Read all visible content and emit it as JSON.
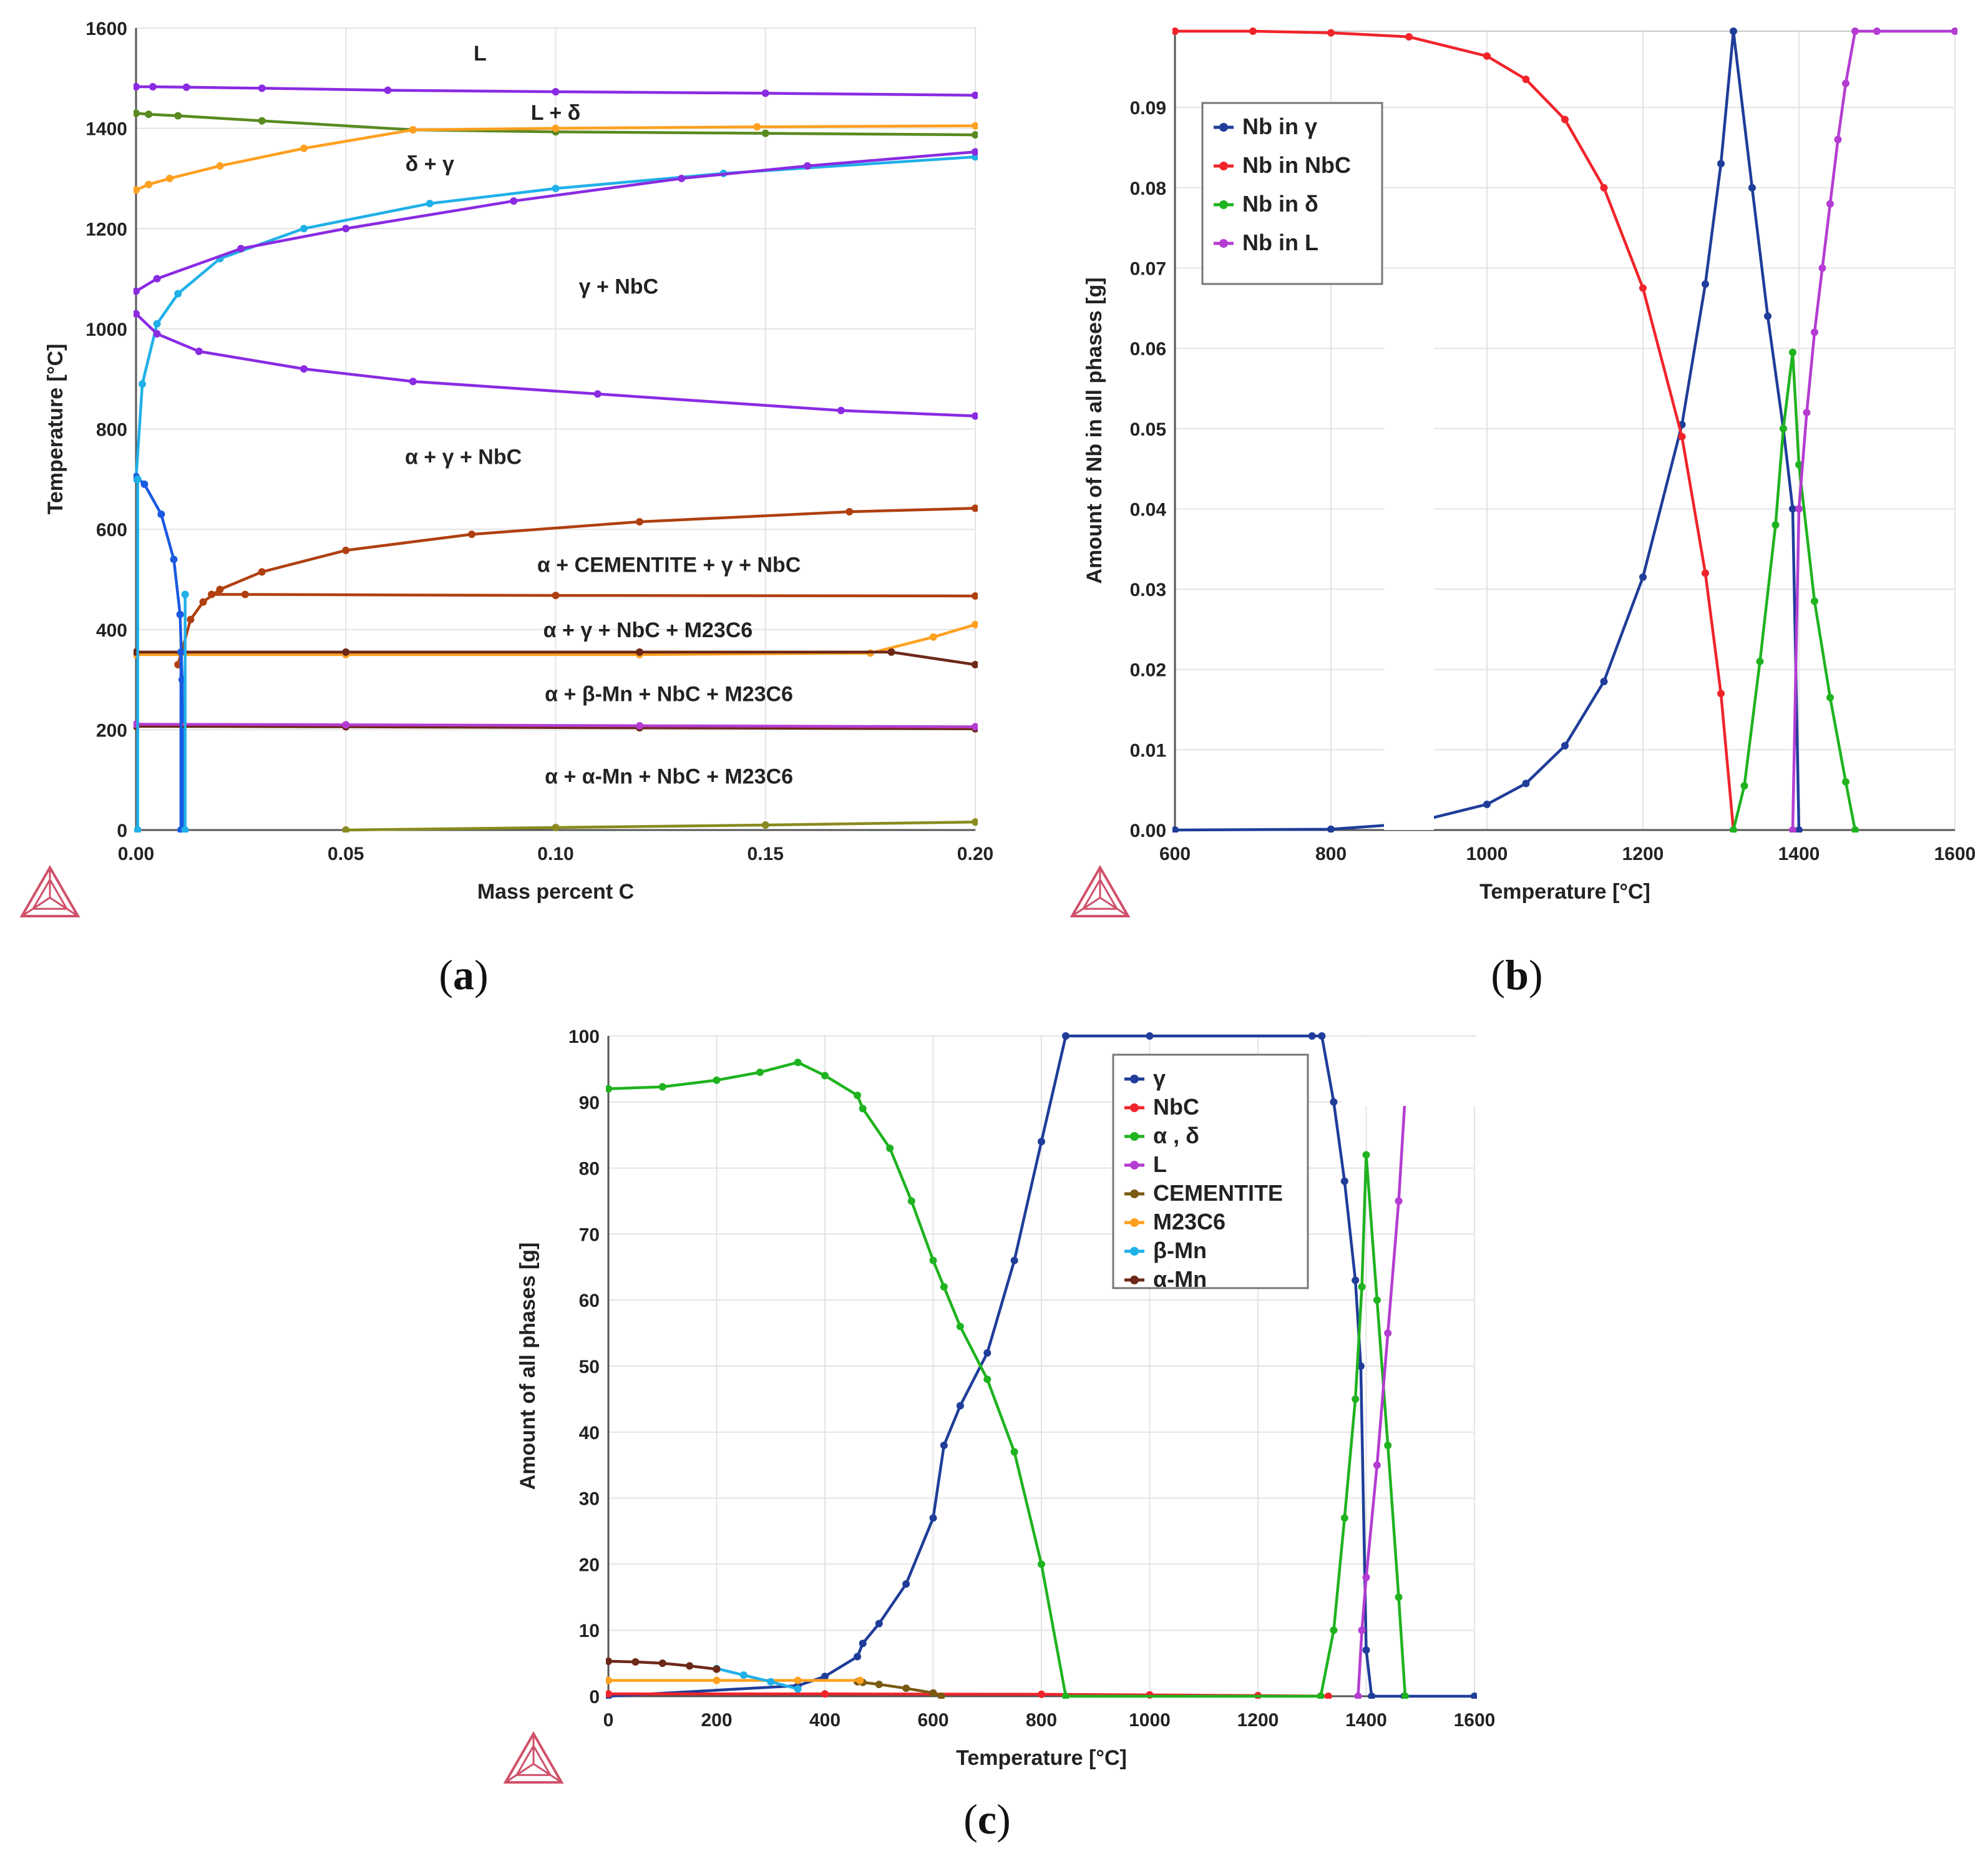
{
  "colors": {
    "gamma": "#1f3d99",
    "nbc": "#f0242a",
    "delta": "#1fb31f",
    "liquid": "#b43cd2",
    "cementite": "#7a5a10",
    "m23c6": "#ffa020",
    "beta_mn": "#20b0e8",
    "alpha_mn": "#6e2818",
    "violet": "#8a2be2",
    "olive": "#5a8a20",
    "brown": "#b04010",
    "blue": "#1a5ae0",
    "olive_dark": "#8a8a20",
    "logo": "#d0506a"
  },
  "captions": {
    "a": {
      "open": "(",
      "letter": "a",
      "close": ")"
    },
    "b": {
      "open": "(",
      "letter": "b",
      "close": ")"
    },
    "c": {
      "open": "(",
      "letter": "c",
      "close": ")"
    }
  },
  "chart_data": [
    {
      "id": "a",
      "type": "line",
      "title": "",
      "xlabel": "Mass percent C",
      "ylabel": "Temperature [°C]",
      "xlim": [
        0,
        0.2
      ],
      "ylim": [
        0,
        1600
      ],
      "xticks": [
        0,
        0.05,
        0.1,
        0.15,
        0.2
      ],
      "xtick_labels": [
        "0.00",
        "0.05",
        "0.10",
        "0.15",
        "0.20"
      ],
      "yticks": [
        0,
        200,
        400,
        600,
        800,
        1000,
        1200,
        1400,
        1600
      ],
      "ytick_labels": [
        "0",
        "200",
        "400",
        "600",
        "800",
        "1000",
        "1200",
        "1400",
        "1600"
      ],
      "grid": true,
      "region_labels": [
        {
          "text": "L",
          "x": 0.082,
          "y": 1550
        },
        {
          "text": "L + δ",
          "x": 0.1,
          "y": 1432
        },
        {
          "text": "δ + γ",
          "x": 0.07,
          "y": 1330
        },
        {
          "text": "γ + NbC",
          "x": 0.115,
          "y": 1085
        },
        {
          "text": "α + γ + NbC",
          "x": 0.078,
          "y": 745
        },
        {
          "text": "α + CEMENTITE + γ + NbC",
          "x": 0.127,
          "y": 530
        },
        {
          "text": "α +  γ + NbC + M23C6",
          "x": 0.122,
          "y": 400
        },
        {
          "text": "α + β-Mn + NbC + M23C6",
          "x": 0.127,
          "y": 272
        },
        {
          "text": "α + α-Mn + NbC + M23C6",
          "x": 0.127,
          "y": 108
        }
      ],
      "series": [
        {
          "name": "L / L+δ boundary",
          "color_key": "violet",
          "x": [
            0,
            0.004,
            0.012,
            0.03,
            0.06,
            0.1,
            0.15,
            0.2
          ],
          "y": [
            1483,
            1483,
            1482,
            1480,
            1476,
            1473,
            1470,
            1466
          ]
        },
        {
          "name": "L+δ / δ+γ (δ side)",
          "color_key": "olive",
          "x": [
            0,
            0.003,
            0.01,
            0.03,
            0.066,
            0.1,
            0.15,
            0.2
          ],
          "y": [
            1430,
            1428,
            1425,
            1415,
            1397,
            1393,
            1390,
            1387
          ]
        },
        {
          "name": "δ+γ / γ lower (orange)",
          "color_key": "m23c6",
          "x": [
            0,
            0.003,
            0.008,
            0.02,
            0.04,
            0.066,
            0.1,
            0.148,
            0.2
          ],
          "y": [
            1277,
            1288,
            1300,
            1325,
            1360,
            1397,
            1400,
            1403,
            1405
          ]
        },
        {
          "name": "γ + NbC solvus (light blue)",
          "color_key": "beta_mn",
          "x": [
            0,
            0.0015,
            0.005,
            0.01,
            0.02,
            0.04,
            0.07,
            0.1,
            0.14,
            0.2
          ],
          "y": [
            700,
            890,
            1010,
            1070,
            1140,
            1200,
            1250,
            1280,
            1310,
            1343
          ]
        },
        {
          "name": "γ upper (violet)",
          "color_key": "violet",
          "x": [
            0,
            0.005,
            0.025,
            0.05,
            0.09,
            0.13,
            0.16,
            0.2
          ],
          "y": [
            1075,
            1100,
            1160,
            1200,
            1255,
            1300,
            1325,
            1353
          ]
        },
        {
          "name": "α+γ / γ boundary",
          "color_key": "violet",
          "x": [
            0,
            0.005,
            0.015,
            0.04,
            0.066,
            0.11,
            0.168,
            0.2
          ],
          "y": [
            1030,
            990,
            955,
            920,
            895,
            870,
            837,
            826
          ]
        },
        {
          "name": "cementite boundary",
          "color_key": "brown",
          "x": [
            0.01,
            0.013,
            0.016,
            0.02,
            0.03,
            0.05,
            0.08,
            0.12,
            0.17,
            0.2
          ],
          "y": [
            330,
            420,
            455,
            480,
            515,
            558,
            590,
            615,
            635,
            642
          ]
        },
        {
          "name": "α solvus (blue)",
          "color_key": "blue",
          "x": [
            0,
            0.002,
            0.006,
            0.009,
            0.0105,
            0.011,
            0.0112
          ],
          "y": [
            705,
            690,
            630,
            540,
            430,
            300,
            0
          ]
        },
        {
          "name": "cementite horizontal",
          "color_key": "brown",
          "x": [
            0.018,
            0.026,
            0.1,
            0.2
          ],
          "y": [
            470,
            470,
            468,
            467
          ]
        },
        {
          "name": "M23C6 line",
          "color_key": "m23c6",
          "x": [
            0,
            0.05,
            0.12,
            0.175,
            0.19,
            0.2
          ],
          "y": [
            350,
            350,
            350,
            353,
            385,
            410
          ]
        },
        {
          "name": "dark 355 line",
          "color_key": "alpha_mn",
          "x": [
            0,
            0.05,
            0.12,
            0.18,
            0.2
          ],
          "y": [
            355,
            355,
            355,
            355,
            330
          ]
        },
        {
          "name": "α-Mn line",
          "color_key": "alpha_mn",
          "x": [
            0,
            0.05,
            0.12,
            0.2
          ],
          "y": [
            207,
            206,
            204,
            202
          ]
        },
        {
          "name": "pink 210 line",
          "color_key": "liquid",
          "x": [
            0,
            0.05,
            0.12,
            0.2
          ],
          "y": [
            211,
            210,
            208,
            206
          ]
        },
        {
          "name": "bottom olive line",
          "color_key": "olive_dark",
          "x": [
            0.05,
            0.1,
            0.15,
            0.2
          ],
          "y": [
            0,
            5,
            10,
            16
          ]
        },
        {
          "name": "cyan vertical 0.000",
          "color_key": "beta_mn",
          "x": [
            0.0004,
            0.0004
          ],
          "y": [
            0,
            700
          ]
        },
        {
          "name": "blue vertical 0.011",
          "color_key": "blue",
          "x": [
            0.0107,
            0.0107
          ],
          "y": [
            0,
            355
          ]
        },
        {
          "name": "cyan vertical 0.012",
          "color_key": "beta_mn",
          "x": [
            0.0117,
            0.0117
          ],
          "y": [
            0,
            470
          ]
        }
      ]
    },
    {
      "id": "b",
      "type": "line",
      "title": "",
      "xlabel": "Temperature [°C]",
      "ylabel": "Amount of Nb in all phases [g]",
      "xlim": [
        600,
        1600
      ],
      "ylim": [
        0,
        0.1
      ],
      "xticks": [
        600,
        800,
        1000,
        1200,
        1400,
        1600
      ],
      "xtick_labels": [
        "600",
        "800",
        "1000",
        "1200",
        "1400",
        "1600"
      ],
      "yticks": [
        0,
        0.01,
        0.02,
        0.03,
        0.04,
        0.05,
        0.06,
        0.07,
        0.08,
        0.09
      ],
      "ytick_labels": [
        "0.00",
        "0.01",
        "0.02",
        "0.03",
        "0.04",
        "0.05",
        "0.06",
        "0.07",
        "0.08",
        "0.09"
      ],
      "grid": true,
      "legend": [
        "Nb in γ",
        "Nb in NbC",
        "Nb in δ",
        "Nb in L"
      ],
      "legend_position": "top-left",
      "series": [
        {
          "name": "Nb in γ",
          "color_key": "gamma",
          "x": [
            600,
            800,
            900,
            1000,
            1050,
            1100,
            1150,
            1200,
            1250,
            1280,
            1300,
            1316,
            1340,
            1360,
            1380,
            1392,
            1400
          ],
          "y": [
            0,
            0.0001,
            0.0008,
            0.0032,
            0.0058,
            0.0105,
            0.0185,
            0.0315,
            0.0505,
            0.068,
            0.083,
            0.0995,
            0.08,
            0.064,
            0.05,
            0.04,
            0
          ]
        },
        {
          "name": "Nb in NbC",
          "color_key": "nbc",
          "x": [
            600,
            700,
            800,
            900,
            1000,
            1050,
            1100,
            1150,
            1200,
            1250,
            1280,
            1300,
            1316
          ],
          "y": [
            0.0995,
            0.0995,
            0.0993,
            0.0988,
            0.0964,
            0.0935,
            0.0885,
            0.08,
            0.0675,
            0.049,
            0.032,
            0.017,
            0
          ]
        },
        {
          "name": "Nb in δ",
          "color_key": "delta",
          "x": [
            1316,
            1330,
            1350,
            1370,
            1380,
            1392,
            1400,
            1420,
            1440,
            1460,
            1472
          ],
          "y": [
            0,
            0.0055,
            0.021,
            0.038,
            0.05,
            0.0595,
            0.0455,
            0.0285,
            0.0165,
            0.006,
            0
          ]
        },
        {
          "name": "Nb in L",
          "color_key": "liquid",
          "x": [
            1392,
            1400,
            1410,
            1420,
            1430,
            1440,
            1450,
            1460,
            1472,
            1500,
            1600
          ],
          "y": [
            0,
            0.04,
            0.052,
            0.062,
            0.07,
            0.078,
            0.086,
            0.093,
            0.0995,
            0.0995,
            0.0995
          ]
        }
      ]
    },
    {
      "id": "c",
      "type": "line",
      "title": "",
      "xlabel": "Temperature [°C]",
      "ylabel": "Amount of all phases [g]",
      "xlim": [
        0,
        1600
      ],
      "ylim": [
        0,
        100
      ],
      "xticks": [
        0,
        200,
        400,
        600,
        800,
        1000,
        1200,
        1400,
        1600
      ],
      "xtick_labels": [
        "0",
        "200",
        "400",
        "600",
        "800",
        "1000",
        "1200",
        "1400",
        "1600"
      ],
      "yticks": [
        0,
        10,
        20,
        30,
        40,
        50,
        60,
        70,
        80,
        90,
        100
      ],
      "ytick_labels": [
        "0",
        "10",
        "20",
        "30",
        "40",
        "50",
        "60",
        "70",
        "80",
        "90",
        "100"
      ],
      "grid": true,
      "legend": [
        "γ",
        "NbC",
        "α , δ",
        "L",
        "CEMENTITE",
        "M23C6",
        "β-Mn",
        "α-Mn"
      ],
      "legend_position": "top-right",
      "series": [
        {
          "name": "γ",
          "color_key": "gamma",
          "x": [
            0,
            350,
            400,
            460,
            470,
            500,
            550,
            600,
            620,
            650,
            700,
            750,
            800,
            845,
            1000,
            1300,
            1318,
            1340,
            1360,
            1380,
            1390,
            1400,
            1410,
            1470,
            1600
          ],
          "y": [
            0,
            1.6,
            3,
            6,
            8,
            11,
            17,
            27,
            38,
            44,
            52,
            66,
            84,
            100,
            100,
            100,
            100,
            90,
            78,
            63,
            50,
            7,
            0,
            0,
            0
          ]
        },
        {
          "name": "NbC",
          "color_key": "nbc",
          "x": [
            0,
            400,
            800,
            1000,
            1200,
            1316,
            1330
          ],
          "y": [
            0.35,
            0.35,
            0.3,
            0.2,
            0.1,
            0.02,
            0
          ]
        },
        {
          "name": "α , δ",
          "color_key": "delta",
          "x": [
            0,
            100,
            200,
            280,
            350,
            400,
            460,
            470,
            520,
            560,
            600,
            620,
            650,
            700,
            750,
            800,
            845,
            1316,
            1340,
            1360,
            1380,
            1392,
            1400,
            1420,
            1440,
            1460,
            1472
          ],
          "y": [
            92,
            92.3,
            93.3,
            94.5,
            96,
            94,
            91,
            89,
            83,
            75,
            66,
            62,
            56,
            48,
            37,
            20,
            0,
            0,
            10,
            27,
            45,
            62,
            82,
            60,
            38,
            15,
            0
          ]
        },
        {
          "name": "L",
          "color_key": "liquid",
          "x": [
            1385,
            1392,
            1400,
            1420,
            1440,
            1460,
            1472
          ],
          "y": [
            0,
            10,
            18,
            35,
            55,
            75,
            91
          ]
        },
        {
          "name": "CEMENTITE",
          "color_key": "cementite",
          "x": [
            460,
            470,
            500,
            550,
            600,
            615
          ],
          "y": [
            2.2,
            2.1,
            1.8,
            1.2,
            0.5,
            0
          ]
        },
        {
          "name": "M23C6",
          "color_key": "m23c6",
          "x": [
            0,
            200,
            350,
            465
          ],
          "y": [
            2.4,
            2.4,
            2.4,
            2.4
          ]
        },
        {
          "name": "β-Mn",
          "color_key": "beta_mn",
          "x": [
            200,
            250,
            300,
            350
          ],
          "y": [
            4.2,
            3.2,
            2.2,
            1.1
          ]
        },
        {
          "name": "α-Mn",
          "color_key": "alpha_mn",
          "x": [
            0,
            50,
            100,
            150,
            200
          ],
          "y": [
            5.3,
            5.2,
            5.0,
            4.6,
            4.1
          ]
        }
      ]
    }
  ]
}
